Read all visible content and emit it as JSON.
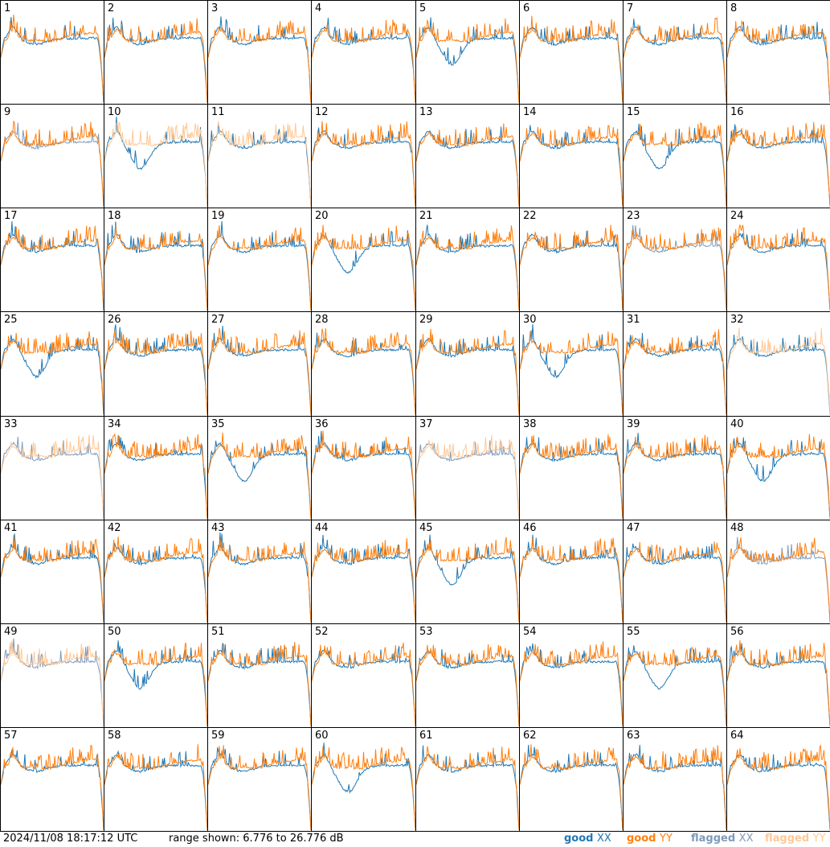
{
  "chart_data": {
    "type": "line",
    "panels": [
      "1",
      "2",
      "3",
      "4",
      "5",
      "6",
      "7",
      "8",
      "9",
      "10",
      "11",
      "12",
      "13",
      "14",
      "15",
      "16",
      "17",
      "18",
      "19",
      "20",
      "21",
      "22",
      "23",
      "24",
      "25",
      "26",
      "27",
      "28",
      "29",
      "30",
      "31",
      "32",
      "33",
      "34",
      "35",
      "36",
      "37",
      "38",
      "39",
      "40",
      "41",
      "42",
      "43",
      "44",
      "45",
      "46",
      "47",
      "48",
      "49",
      "50",
      "51",
      "52",
      "53",
      "54",
      "55",
      "56",
      "57",
      "58",
      "59",
      "60",
      "61",
      "62",
      "63",
      "64"
    ],
    "range_db": [
      6.776,
      26.776
    ],
    "series": [
      {
        "name": "good XX",
        "color": "#1f77b4"
      },
      {
        "name": "good YY",
        "color": "#ff7f0e"
      },
      {
        "name": "flagged XX",
        "color": "#7f9ab8"
      },
      {
        "name": "flagged YY",
        "color": "#ffc896"
      }
    ],
    "flagged_xx_panels": [
      9,
      23,
      33,
      37,
      48,
      49
    ],
    "flagged_yy_panels": [
      10,
      11,
      32,
      33,
      37,
      49
    ]
  },
  "footer": {
    "timestamp": "2024/11/08 18:17:12 UTC",
    "range_text": "range shown: 6.776 to 26.776 dB",
    "legend": [
      {
        "prefix": "good ",
        "suffix": "XX",
        "color": "#1f77b4"
      },
      {
        "prefix": "good ",
        "suffix": "YY",
        "color": "#ff7f0e"
      },
      {
        "prefix": "flagged ",
        "suffix": "XX",
        "color": "#7f9ab8"
      },
      {
        "prefix": "flagged ",
        "suffix": "YY",
        "color": "#ffc896"
      }
    ]
  }
}
